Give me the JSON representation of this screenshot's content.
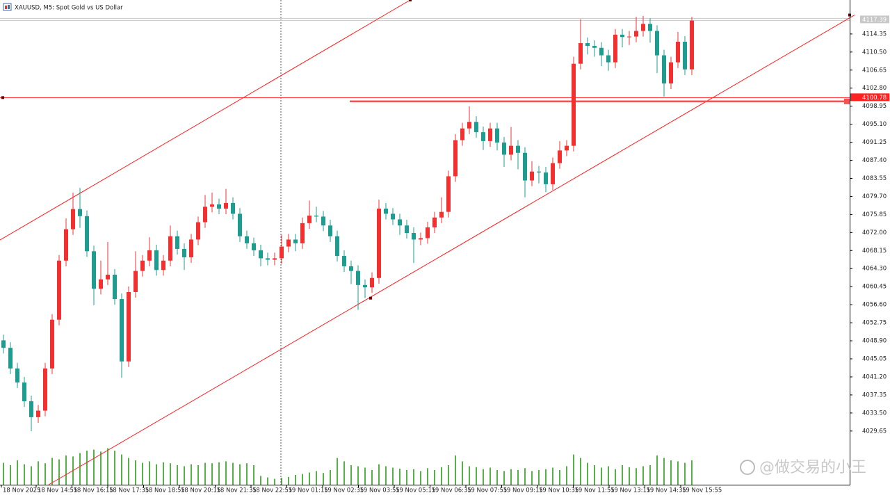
{
  "chart_data": {
    "type": "candlestick",
    "title": "XAUUSD, M5:  Spot Gold vs US Dollar",
    "watermark": "@做交易的小王",
    "up_color": "#f23030",
    "down_color": "#1e9c8f",
    "volume_color": "#55b048",
    "xlim": [
      -0.5,
      121.7
    ],
    "ylim": [
      4018.2,
      4121.6
    ],
    "vlim": [
      0,
      100
    ],
    "xticks": [
      {
        "value": -0.3,
        "label": "18 Nov 2025"
      },
      {
        "value": 4.7,
        "label": "18 Nov 14:55"
      },
      {
        "value": 9.85,
        "label": "18 Nov 16:15"
      },
      {
        "value": 15.0,
        "label": "18 Nov 17:35"
      },
      {
        "value": 20.15,
        "label": "18 Nov 18:55"
      },
      {
        "value": 25.3,
        "label": "18 Nov 20:15"
      },
      {
        "value": 30.45,
        "label": "18 Nov 21:35"
      },
      {
        "value": 35.6,
        "label": "18 Nov 22:55"
      },
      {
        "value": 40.75,
        "label": "19 Nov 01:15"
      },
      {
        "value": 45.9,
        "label": "19 Nov 02:35"
      },
      {
        "value": 51.05,
        "label": "19 Nov 03:55"
      },
      {
        "value": 56.2,
        "label": "19 Nov 05:15"
      },
      {
        "value": 61.35,
        "label": "19 Nov 06:35"
      },
      {
        "value": 66.5,
        "label": "19 Nov 07:55"
      },
      {
        "value": 71.65,
        "label": "19 Nov 09:15"
      },
      {
        "value": 76.8,
        "label": "19 Nov 10:35"
      },
      {
        "value": 81.95,
        "label": "19 Nov 11:55"
      },
      {
        "value": 87.1,
        "label": "19 Nov 13:15"
      },
      {
        "value": 92.25,
        "label": "19 Nov 14:35"
      },
      {
        "value": 97.4,
        "label": "19 Nov 15:55"
      }
    ],
    "yticks": [
      {
        "value": 4029.65,
        "label": "4029.65"
      },
      {
        "value": 4033.5,
        "label": "4033.50"
      },
      {
        "value": 4037.35,
        "label": "4037.35"
      },
      {
        "value": 4041.2,
        "label": "4041.20"
      },
      {
        "value": 4045.05,
        "label": "4045.05"
      },
      {
        "value": 4048.9,
        "label": "4048.90"
      },
      {
        "value": 4052.75,
        "label": "4052.75"
      },
      {
        "value": 4056.6,
        "label": "4056.60"
      },
      {
        "value": 4060.45,
        "label": "4060.45"
      },
      {
        "value": 4064.3,
        "label": "4064.30"
      },
      {
        "value": 4068.15,
        "label": "4068.15"
      },
      {
        "value": 4072.0,
        "label": "4072.00"
      },
      {
        "value": 4075.85,
        "label": "4075.85"
      },
      {
        "value": 4079.7,
        "label": "4079.70"
      },
      {
        "value": 4083.55,
        "label": "4083.55"
      },
      {
        "value": 4087.4,
        "label": "4087.40"
      },
      {
        "value": 4091.25,
        "label": "4091.25"
      },
      {
        "value": 4095.1,
        "label": "4095.10"
      },
      {
        "value": 4098.95,
        "label": "4098.95"
      },
      {
        "value": 4102.8,
        "label": "4102.80"
      },
      {
        "value": 4106.65,
        "label": "4106.65"
      },
      {
        "value": 4110.5,
        "label": "4110.50"
      },
      {
        "value": 4114.35,
        "label": "4114.35"
      }
    ],
    "open": [
      4049,
      4047.4,
      4043,
      4040,
      4036,
      4032.6,
      4034,
      4043,
      4053.4,
      4066,
      4072.7,
      4077,
      4075.5,
      4068,
      4060,
      4062,
      4063,
      4057.8,
      4044.5,
      4059.3,
      4063.8,
      4066,
      4068.2,
      4064,
      4066,
      4071.2,
      4068.5,
      4066.7,
      4070.5,
      4074.2,
      4077.5,
      4078,
      4077.1,
      4078.3,
      4076,
      4071.2,
      4069.7,
      4068.2,
      4066.5,
      4066.2,
      4066.5,
      4069,
      4070.5,
      4069.7,
      4074,
      4075.6,
      4075.4,
      4073.5,
      4071.2,
      4067,
      4064.8,
      4063.8,
      4060.8,
      4060.3,
      4062.3,
      4077.1,
      4076,
      4074.8,
      4073.5,
      4071.9,
      4070.5,
      4070.8,
      4073.1,
      4075.2,
      4076.4,
      4084,
      4091.7,
      4094.2,
      4095.6,
      4093.4,
      4091.5,
      4094.2,
      4091.2,
      4088.6,
      4090.5,
      4089,
      4083.1,
      4085,
      4084.8,
      4082.3,
      4086.8,
      4089.5,
      4090.5,
      4108,
      4112.4,
      4111.8,
      4111.4,
      4109.8,
      4108.3,
      4114.2,
      4113.7,
      4113.8,
      4115,
      4116.5,
      4115,
      4109.8,
      4103.8,
      4108.3,
      4112.7,
      4106.8
    ],
    "high": [
      4050.2,
      4048.6,
      4044.2,
      4041.2,
      4037.2,
      4035.2,
      4044.2,
      4054.6,
      4067.2,
      4075,
      4080.5,
      4081.5,
      4076.7,
      4069.2,
      4066,
      4070,
      4064.2,
      4059,
      4060.5,
      4068,
      4067.2,
      4071,
      4069.4,
      4067.2,
      4073.5,
      4072.4,
      4069.7,
      4071.7,
      4075.4,
      4080,
      4080.5,
      4079.2,
      4081.3,
      4079.5,
      4077.2,
      4072.4,
      4070.9,
      4069.4,
      4067.7,
      4067.7,
      4071.5,
      4071.7,
      4071.7,
      4075.2,
      4078.8,
      4077.5,
      4076.6,
      4074.7,
      4072.4,
      4068.2,
      4066,
      4065,
      4062,
      4063.5,
      4079,
      4078.3,
      4077.2,
      4076,
      4074.7,
      4073.1,
      4072,
      4074.3,
      4076.4,
      4079.5,
      4085.2,
      4093,
      4095.4,
      4098.9,
      4096.8,
      4094.6,
      4095.4,
      4095.4,
      4092.4,
      4094.5,
      4091.7,
      4090.2,
      4087.2,
      4086.2,
      4086,
      4088,
      4091.5,
      4091.7,
      4109.5,
      4117.5,
      4113.6,
      4113,
      4112.6,
      4111,
      4115.4,
      4115.4,
      4115,
      4118,
      4118.2,
      4117.7,
      4116.2,
      4111,
      4109.5,
      4114.8,
      4113.9,
      4118
    ],
    "low": [
      4046.2,
      4041.8,
      4038.8,
      4034.8,
      4029.6,
      4031.4,
      4032.8,
      4041.8,
      4052.2,
      4064.8,
      4071.5,
      4073,
      4066.8,
      4056.5,
      4058.8,
      4060.8,
      4056.6,
      4041,
      4043.3,
      4058.1,
      4062.6,
      4064.8,
      4062.8,
      4062.8,
      4064.8,
      4067.3,
      4064,
      4065.5,
      4069.3,
      4073,
      4076.3,
      4075.9,
      4075.9,
      4074.8,
      4070,
      4068.5,
      4067,
      4064.8,
      4065,
      4065,
      4065.3,
      4067.8,
      4068,
      4068.5,
      4072.8,
      4074.2,
      4072.3,
      4070,
      4065.8,
      4063.6,
      4061,
      4055.5,
      4058,
      4059.1,
      4061.1,
      4074.8,
      4073.6,
      4071.5,
      4070.7,
      4065.5,
      4069.3,
      4069.6,
      4071.9,
      4074,
      4075.2,
      4082.8,
      4090.5,
      4093,
      4092.2,
      4089.6,
      4090.3,
      4089.5,
      4086,
      4087.4,
      4085.5,
      4079.5,
      4081.9,
      4082.5,
      4080.6,
      4081.1,
      4085.6,
      4088.3,
      4089.3,
      4106.8,
      4110,
      4109.5,
      4107.5,
      4106.5,
      4107.1,
      4111.5,
      4112,
      4112.6,
      4113.8,
      4112.5,
      4106,
      4101,
      4102.6,
      4107.1,
      4105.6,
      4105.6
    ],
    "close": [
      4047.4,
      4043,
      4040,
      4036,
      4032.6,
      4034,
      4043,
      4053.4,
      4066,
      4072.7,
      4077,
      4075.5,
      4068,
      4060,
      4062,
      4063,
      4057.8,
      4044.5,
      4059.3,
      4063.8,
      4066,
      4068.2,
      4064,
      4066,
      4071.2,
      4068.5,
      4066.7,
      4070.5,
      4074.2,
      4077.5,
      4078,
      4077.1,
      4078.3,
      4076,
      4071.2,
      4069.7,
      4068.2,
      4066.5,
      4066.2,
      4066.5,
      4069,
      4070.5,
      4069.7,
      4074,
      4075.6,
      4075.4,
      4073.5,
      4071.2,
      4067,
      4064.8,
      4063.8,
      4060.8,
      4060.3,
      4062.3,
      4077.1,
      4076,
      4074.8,
      4073.5,
      4071.9,
      4070.5,
      4070.8,
      4073.1,
      4075.2,
      4076.4,
      4084,
      4091.7,
      4094.2,
      4095.6,
      4093.4,
      4091.5,
      4094.2,
      4091.2,
      4088.6,
      4090.5,
      4089,
      4083.1,
      4085,
      4084.8,
      4082.3,
      4086.8,
      4089.5,
      4090.5,
      4108,
      4112.4,
      4111.8,
      4111.4,
      4109.8,
      4108.3,
      4114.2,
      4113.7,
      4113.8,
      4115,
      4116.5,
      4115,
      4109.8,
      4103.8,
      4108.3,
      4112.7,
      4106.8,
      4117.2
    ],
    "volume": [
      45,
      40,
      50,
      42,
      38,
      48,
      44,
      55,
      52,
      60,
      58,
      65,
      70,
      72,
      68,
      75,
      70,
      62,
      55,
      50,
      45,
      48,
      42,
      46,
      44,
      40,
      38,
      42,
      40,
      45,
      44,
      46,
      48,
      45,
      42,
      44,
      40,
      18,
      15,
      12,
      14,
      16,
      20,
      22,
      25,
      28,
      24,
      30,
      55,
      48,
      40,
      38,
      35,
      30,
      42,
      38,
      35,
      33,
      30,
      32,
      28,
      34,
      30,
      36,
      40,
      60,
      48,
      38,
      36,
      32,
      35,
      30,
      28,
      32,
      30,
      34,
      28,
      30,
      32,
      35,
      30,
      38,
      62,
      55,
      45,
      40,
      35,
      38,
      32,
      40,
      36,
      34,
      38,
      40,
      60,
      55,
      50,
      48,
      45,
      50
    ],
    "bid": 4117.39,
    "level": {
      "value": 4100.78,
      "label": "4100.78",
      "color": "#ff2020"
    },
    "zone": {
      "start": 49.8,
      "value": 4099.97,
      "color": "#f85050"
    },
    "trendlines": [
      {
        "x": [
          -0.5,
          58.5
        ],
        "y": [
          4070.4,
          4121.6
        ],
        "color": "#ff2020"
      },
      {
        "x": [
          6.5,
          122.4
        ],
        "y": [
          4018.2,
          4118.4
        ],
        "color": "#ff2020",
        "anchor": {
          "x": 52.8,
          "y": 4058
        }
      }
    ],
    "vline": 39.9
  }
}
